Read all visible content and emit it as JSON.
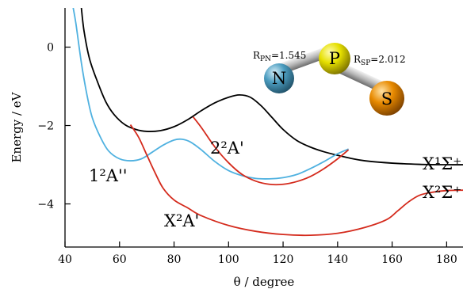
{
  "chart_data": {
    "type": "line",
    "xlabel": "θ / degree",
    "ylabel": "Energy / eV",
    "xlim": [
      40,
      186
    ],
    "ylim": [
      -5.1,
      1.0
    ],
    "xticks": [
      40,
      60,
      80,
      100,
      120,
      140,
      160,
      180
    ],
    "yticks": [
      0,
      -2,
      -4
    ],
    "series": [
      {
        "name": "X¹Σ⁺",
        "color": "#000000",
        "points": [
          [
            46,
            1.0
          ],
          [
            47,
            0.4
          ],
          [
            49,
            -0.3
          ],
          [
            52,
            -0.9
          ],
          [
            55,
            -1.4
          ],
          [
            58,
            -1.72
          ],
          [
            62,
            -1.98
          ],
          [
            66,
            -2.1
          ],
          [
            70,
            -2.15
          ],
          [
            75,
            -2.13
          ],
          [
            80,
            -2.03
          ],
          [
            85,
            -1.85
          ],
          [
            90,
            -1.62
          ],
          [
            95,
            -1.42
          ],
          [
            100,
            -1.28
          ],
          [
            104,
            -1.22
          ],
          [
            108,
            -1.28
          ],
          [
            112,
            -1.5
          ],
          [
            116,
            -1.8
          ],
          [
            120,
            -2.1
          ],
          [
            125,
            -2.38
          ],
          [
            130,
            -2.55
          ],
          [
            135,
            -2.67
          ],
          [
            140,
            -2.76
          ],
          [
            145,
            -2.84
          ],
          [
            150,
            -2.9
          ],
          [
            160,
            -2.96
          ],
          [
            170,
            -2.99
          ],
          [
            180,
            -3.0
          ],
          [
            186,
            -3.0
          ]
        ]
      },
      {
        "name": "1²A''",
        "color": "#4fb1e0",
        "points": [
          [
            43,
            1.0
          ],
          [
            44,
            0.6
          ],
          [
            46,
            -0.4
          ],
          [
            48,
            -1.2
          ],
          [
            50,
            -1.8
          ],
          [
            53,
            -2.3
          ],
          [
            56,
            -2.65
          ],
          [
            60,
            -2.85
          ],
          [
            64,
            -2.9
          ],
          [
            68,
            -2.85
          ],
          [
            72,
            -2.68
          ],
          [
            76,
            -2.5
          ],
          [
            80,
            -2.37
          ],
          [
            83,
            -2.35
          ],
          [
            86,
            -2.42
          ],
          [
            90,
            -2.62
          ],
          [
            95,
            -2.92
          ],
          [
            100,
            -3.15
          ],
          [
            105,
            -3.28
          ],
          [
            110,
            -3.35
          ],
          [
            115,
            -3.36
          ],
          [
            120,
            -3.33
          ],
          [
            125,
            -3.25
          ],
          [
            130,
            -3.1
          ],
          [
            135,
            -2.92
          ],
          [
            140,
            -2.72
          ],
          [
            144,
            -2.6
          ]
        ]
      },
      {
        "name": "X²A'",
        "color": "#d42a1c",
        "points": [
          [
            64,
            -1.98
          ],
          [
            67,
            -2.3
          ],
          [
            70,
            -2.75
          ],
          [
            73,
            -3.2
          ],
          [
            76,
            -3.6
          ],
          [
            80,
            -3.9
          ],
          [
            85,
            -4.1
          ],
          [
            90,
            -4.3
          ],
          [
            100,
            -4.55
          ],
          [
            110,
            -4.7
          ],
          [
            120,
            -4.78
          ],
          [
            130,
            -4.8
          ],
          [
            140,
            -4.75
          ],
          [
            150,
            -4.6
          ],
          [
            158,
            -4.4
          ],
          [
            162,
            -4.18
          ],
          [
            166,
            -3.95
          ],
          [
            170,
            -3.78
          ],
          [
            175,
            -3.7
          ],
          [
            180,
            -3.66
          ],
          [
            186,
            -3.65
          ]
        ]
      },
      {
        "name": "2²A'",
        "color": "#d42a1c",
        "points": [
          [
            87,
            -1.78
          ],
          [
            90,
            -2.05
          ],
          [
            95,
            -2.55
          ],
          [
            100,
            -2.95
          ],
          [
            105,
            -3.25
          ],
          [
            110,
            -3.42
          ],
          [
            115,
            -3.5
          ],
          [
            120,
            -3.5
          ],
          [
            125,
            -3.43
          ],
          [
            130,
            -3.3
          ],
          [
            135,
            -3.1
          ],
          [
            140,
            -2.85
          ],
          [
            144,
            -2.62
          ]
        ]
      }
    ],
    "annotations": [
      {
        "text": "1²A''",
        "x": 60,
        "y": -3.27
      },
      {
        "text": "2²A'",
        "x": 95,
        "y": -2.6
      },
      {
        "text": "X²A'",
        "x": 77,
        "y": -4.5
      },
      {
        "text": "X¹Σ⁺",
        "x": 179,
        "y": -3.0
      },
      {
        "text": "X²Σ⁺",
        "x": 179,
        "y": -3.68
      }
    ],
    "inset": {
      "atoms": [
        {
          "symbol": "N",
          "color": "#4c9dc0"
        },
        {
          "symbol": "P",
          "color": "#e6e000"
        },
        {
          "symbol": "S",
          "color": "#e88a00"
        }
      ],
      "bond_labels": [
        "R_PN=1.545",
        "R_SP=2.012"
      ]
    }
  }
}
